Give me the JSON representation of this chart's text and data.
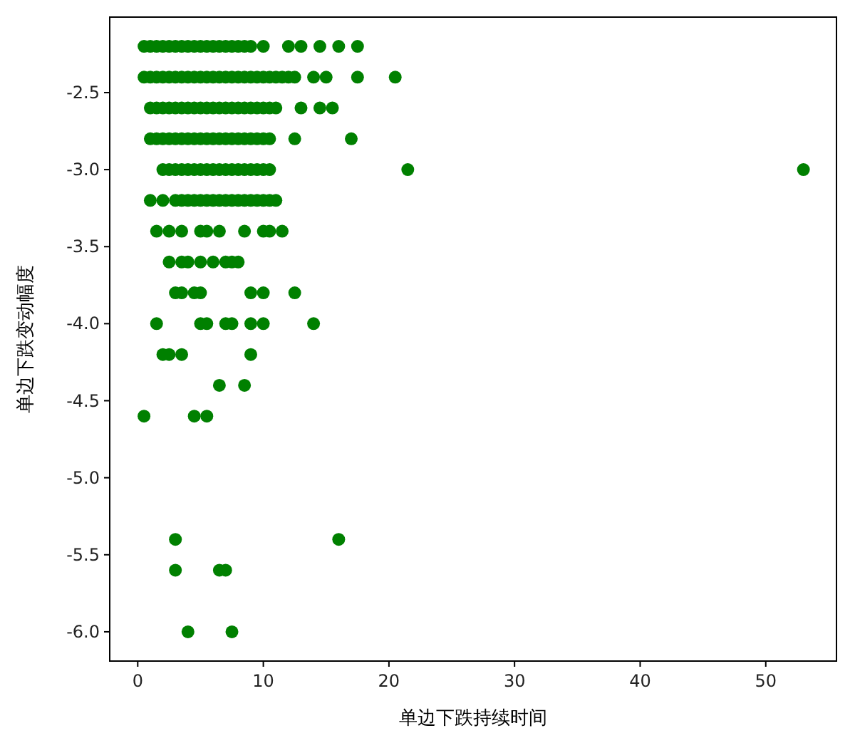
{
  "chart_data": {
    "type": "scatter",
    "xlabel": "单边下跌持续时间",
    "ylabel": "单边下跌变动幅度",
    "xlim": [
      -2.23,
      55.63
    ],
    "ylim": [
      -6.19,
      -2.01
    ],
    "xticks": [
      0,
      10,
      20,
      30,
      40,
      50
    ],
    "yticks": [
      {
        "value": -2.5,
        "label": "-2.5"
      },
      {
        "value": -3,
        "label": "-3.0"
      },
      {
        "value": -3.5,
        "label": "-3.5"
      },
      {
        "value": -4,
        "label": "-4.0"
      },
      {
        "value": -4.5,
        "label": "-4.5"
      },
      {
        "value": -5,
        "label": "-5.0"
      },
      {
        "value": -5.5,
        "label": "-5.5"
      },
      {
        "value": -6,
        "label": "-6.0"
      }
    ],
    "grid": false,
    "marker": "circle",
    "series": [
      {
        "color": "#008000",
        "x": [
          0.5,
          1,
          1.5,
          2,
          2.5,
          3,
          3.5,
          4,
          4.5,
          5,
          5.5,
          6,
          6.5,
          7,
          7.5,
          8,
          8.5,
          9,
          10,
          12,
          13,
          14.5,
          16,
          17.5
        ],
        "values": [
          -2.2,
          -2.2,
          -2.2,
          -2.2,
          -2.2,
          -2.2,
          -2.2,
          -2.2,
          -2.2,
          -2.2,
          -2.2,
          -2.2,
          -2.2,
          -2.2,
          -2.2,
          -2.2,
          -2.2,
          -2.2,
          -2.2,
          -2.2,
          -2.2,
          -2.2,
          -2.2,
          -2.2
        ]
      },
      {
        "color": "#008000",
        "x": [
          0.5,
          1,
          1.5,
          2,
          2.5,
          3,
          3.5,
          4,
          4.5,
          5,
          5.5,
          6,
          6.5,
          7,
          7.5,
          8,
          8.5,
          9,
          9.5,
          10,
          10.5,
          11,
          11.5,
          12,
          12.5,
          14,
          15,
          17.5,
          20.5
        ],
        "values": [
          -2.4,
          -2.4,
          -2.4,
          -2.4,
          -2.4,
          -2.4,
          -2.4,
          -2.4,
          -2.4,
          -2.4,
          -2.4,
          -2.4,
          -2.4,
          -2.4,
          -2.4,
          -2.4,
          -2.4,
          -2.4,
          -2.4,
          -2.4,
          -2.4,
          -2.4,
          -2.4,
          -2.4,
          -2.4,
          -2.4,
          -2.4,
          -2.4,
          -2.4
        ]
      },
      {
        "color": "#008000",
        "x": [
          1,
          1.5,
          2,
          2.5,
          3,
          3.5,
          4,
          4.5,
          5,
          5.5,
          6,
          6.5,
          7,
          7.5,
          8,
          8.5,
          9,
          9.5,
          10,
          10.5,
          11,
          13,
          14.5,
          15.5
        ],
        "values": [
          -2.6,
          -2.6,
          -2.6,
          -2.6,
          -2.6,
          -2.6,
          -2.6,
          -2.6,
          -2.6,
          -2.6,
          -2.6,
          -2.6,
          -2.6,
          -2.6,
          -2.6,
          -2.6,
          -2.6,
          -2.6,
          -2.6,
          -2.6,
          -2.6,
          -2.6,
          -2.6,
          -2.6
        ]
      },
      {
        "color": "#008000",
        "x": [
          1,
          1.5,
          2,
          2.5,
          3,
          3.5,
          4,
          4.5,
          5,
          5.5,
          6,
          6.5,
          7,
          7.5,
          8,
          8.5,
          9,
          9.5,
          10,
          10.5,
          12.5,
          17
        ],
        "values": [
          -2.8,
          -2.8,
          -2.8,
          -2.8,
          -2.8,
          -2.8,
          -2.8,
          -2.8,
          -2.8,
          -2.8,
          -2.8,
          -2.8,
          -2.8,
          -2.8,
          -2.8,
          -2.8,
          -2.8,
          -2.8,
          -2.8,
          -2.8,
          -2.8,
          -2.8
        ]
      },
      {
        "color": "#008000",
        "x": [
          2,
          2.5,
          3,
          3.5,
          4,
          4.5,
          5,
          5.5,
          6,
          6.5,
          7,
          7.5,
          8,
          8.5,
          9,
          9.5,
          10,
          10.5,
          21.5,
          53
        ],
        "values": [
          -3,
          -3,
          -3,
          -3,
          -3,
          -3,
          -3,
          -3,
          -3,
          -3,
          -3,
          -3,
          -3,
          -3,
          -3,
          -3,
          -3,
          -3,
          -3,
          -3
        ]
      },
      {
        "color": "#008000",
        "x": [
          1,
          2,
          3,
          3.5,
          4,
          4.5,
          5,
          5.5,
          6,
          6.5,
          7,
          7.5,
          8,
          8.5,
          9,
          9.5,
          10,
          10.5,
          11
        ],
        "values": [
          -3.2,
          -3.2,
          -3.2,
          -3.2,
          -3.2,
          -3.2,
          -3.2,
          -3.2,
          -3.2,
          -3.2,
          -3.2,
          -3.2,
          -3.2,
          -3.2,
          -3.2,
          -3.2,
          -3.2,
          -3.2,
          -3.2
        ]
      },
      {
        "color": "#008000",
        "x": [
          1.5,
          2.5,
          3.5,
          5,
          5.5,
          6.5,
          8.5,
          10,
          10.5,
          11.5
        ],
        "values": [
          -3.4,
          -3.4,
          -3.4,
          -3.4,
          -3.4,
          -3.4,
          -3.4,
          -3.4,
          -3.4,
          -3.4
        ]
      },
      {
        "color": "#008000",
        "x": [
          2.5,
          3.5,
          4,
          5,
          6,
          7,
          7.5,
          8
        ],
        "values": [
          -3.6,
          -3.6,
          -3.6,
          -3.6,
          -3.6,
          -3.6,
          -3.6,
          -3.6
        ]
      },
      {
        "color": "#008000",
        "x": [
          3,
          3.5,
          4.5,
          5,
          9,
          10,
          12.5
        ],
        "values": [
          -3.8,
          -3.8,
          -3.8,
          -3.8,
          -3.8,
          -3.8,
          -3.8
        ]
      },
      {
        "color": "#008000",
        "x": [
          1.5,
          5,
          5.5,
          7,
          7.5,
          9,
          10,
          14
        ],
        "values": [
          -4,
          -4,
          -4,
          -4,
          -4,
          -4,
          -4,
          -4
        ]
      },
      {
        "color": "#008000",
        "x": [
          2,
          2.5,
          3.5,
          9,
          6.5,
          8.5,
          0.5,
          4.5,
          5.5,
          3,
          16,
          3,
          6.5,
          7,
          4,
          7.5
        ],
        "values": [
          -4.2,
          -4.2,
          -4.2,
          -4.2,
          -4.4,
          -4.4,
          -4.6,
          -4.6,
          -4.6,
          -5.4,
          -5.4,
          -5.6,
          -5.6,
          -5.6,
          -6,
          -6
        ]
      }
    ]
  }
}
